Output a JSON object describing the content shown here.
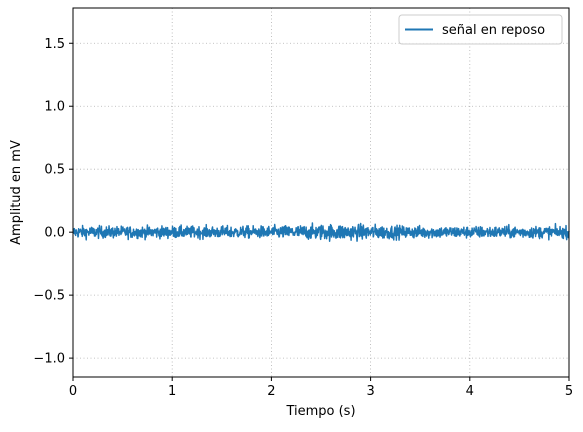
{
  "chart_data": {
    "type": "line",
    "xlabel": "Tiempo (s)",
    "ylabel": "Amplitud en mV",
    "xlim": [
      0,
      5
    ],
    "ylim": [
      -1.15,
      1.78
    ],
    "xticks": [
      0,
      1,
      2,
      3,
      4,
      5
    ],
    "xtick_labels": [
      "0",
      "1",
      "2",
      "3",
      "4",
      "5"
    ],
    "yticks": [
      -1.0,
      -0.5,
      0.0,
      0.5,
      1.0,
      1.5
    ],
    "ytick_labels": [
      "−1.0",
      "−0.5",
      "0.0",
      "0.5",
      "1.0",
      "1.5"
    ],
    "grid": true,
    "legend_position": "top-right",
    "series": [
      {
        "name": "señal en reposo",
        "color": "#1f77b4",
        "x_start": 0,
        "x_end": 5,
        "mean": 0.0,
        "peak_amplitude": 0.08,
        "description_values": "low-amplitude noise around 0.0 mV, within about ±0.08 mV"
      }
    ]
  }
}
